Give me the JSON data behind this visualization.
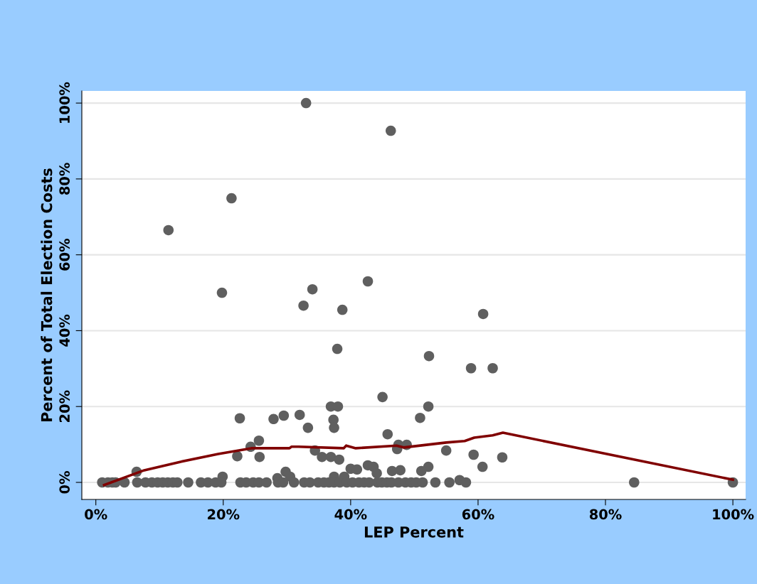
{
  "chart_data": {
    "type": "scatter",
    "xlabel": "LEP Percent",
    "ylabel": "Percent of Total Election Costs",
    "xlim": [
      -2.2,
      102
    ],
    "ylim": [
      -4.5,
      103.2
    ],
    "xticks": [
      {
        "value": 0,
        "label": "0%"
      },
      {
        "value": 20,
        "label": "20%"
      },
      {
        "value": 40,
        "label": "40%"
      },
      {
        "value": 60,
        "label": "60%"
      },
      {
        "value": 80,
        "label": "80%"
      },
      {
        "value": 100,
        "label": "100%"
      }
    ],
    "yticks": [
      {
        "value": 0,
        "label": "0%"
      },
      {
        "value": 20,
        "label": "20%"
      },
      {
        "value": 40,
        "label": "40%"
      },
      {
        "value": 60,
        "label": "60%"
      },
      {
        "value": 80,
        "label": "80%"
      },
      {
        "value": 100,
        "label": "100%"
      }
    ],
    "grid": "y",
    "marker": "circle",
    "series": [
      {
        "color": "#5f5f5f",
        "x": [
          33.0,
          46.3,
          21.3,
          11.4,
          19.8,
          34.0,
          32.6,
          38.7,
          42.7,
          60.8,
          37.9,
          52.3,
          58.9,
          62.3,
          45.0,
          36.9,
          38.0,
          52.2,
          37.3,
          37.4,
          22.6,
          27.9,
          29.5,
          32.0,
          33.3,
          50.9,
          45.8,
          25.6,
          24.3,
          47.5,
          48.8,
          47.3,
          55.0,
          34.4,
          22.2,
          25.7,
          35.5,
          36.9,
          38.2,
          59.3,
          63.8,
          60.7,
          52.2,
          42.7,
          43.6,
          40.0,
          41.0,
          47.8,
          46.5,
          51.1,
          44.1,
          37.4,
          39.0,
          29.8,
          30.5,
          28.5,
          19.9,
          6.4,
          57.1,
          1.0,
          1.9,
          2.6,
          3.1,
          4.5,
          6.5,
          7.8,
          8.8,
          9.7,
          10.5,
          11.3,
          12.1,
          12.8,
          14.5,
          16.5,
          17.6,
          18.8,
          19.7,
          22.7,
          23.6,
          24.7,
          25.6,
          26.8,
          28.6,
          29.4,
          31.1,
          32.7,
          33.6,
          34.9,
          35.8,
          36.6,
          37.4,
          38.3,
          39.4,
          40.3,
          41.3,
          42.1,
          42.9,
          44.2,
          44.9,
          45.7,
          46.4,
          47.5,
          48.6,
          49.5,
          50.3,
          51.3,
          53.3,
          55.5,
          58.1,
          84.5,
          100.0
        ],
        "values": [
          100,
          92.7,
          74.9,
          66.5,
          50.0,
          50.9,
          46.6,
          45.5,
          53.0,
          44.4,
          35.2,
          33.3,
          30.1,
          30.1,
          22.5,
          20.0,
          20.0,
          20.0,
          16.5,
          14.4,
          16.9,
          16.7,
          17.6,
          17.8,
          14.4,
          17.0,
          12.7,
          11.0,
          9.4,
          9.9,
          9.9,
          8.8,
          8.4,
          8.4,
          6.9,
          6.7,
          6.7,
          6.7,
          6.0,
          7.3,
          6.6,
          4.1,
          4.1,
          4.5,
          4.1,
          3.6,
          3.4,
          3.2,
          3.0,
          3.0,
          2.4,
          1.5,
          1.5,
          2.8,
          1.5,
          1.1,
          1.5,
          2.8,
          0.6,
          0,
          0,
          0,
          0,
          0,
          0,
          0,
          0,
          0,
          0,
          0,
          0,
          0,
          0,
          0,
          0,
          0,
          0,
          0,
          0,
          0,
          0,
          0,
          0,
          0,
          0,
          0,
          0,
          0,
          0,
          0,
          0,
          0,
          0,
          0,
          0,
          0,
          0,
          0,
          0,
          0,
          0,
          0,
          0,
          0,
          0,
          0,
          0,
          0,
          0,
          0,
          0
        ]
      },
      {
        "type": "line",
        "color": "#800000",
        "marker": "none",
        "x": [
          1.3,
          7.6,
          13.2,
          19.2,
          24.4,
          30.4,
          30.7,
          31.8,
          38.9,
          39.3,
          40.8,
          47.2,
          48.3,
          55.0,
          57.9,
          59.4,
          62.3,
          63.9,
          100
        ],
        "values": [
          -0.7,
          3.2,
          5.4,
          7.5,
          9.0,
          9.0,
          9.4,
          9.4,
          9.0,
          9.7,
          9.0,
          9.7,
          9.2,
          10.5,
          10.9,
          11.8,
          12.4,
          13.1,
          0.7
        ]
      }
    ]
  }
}
